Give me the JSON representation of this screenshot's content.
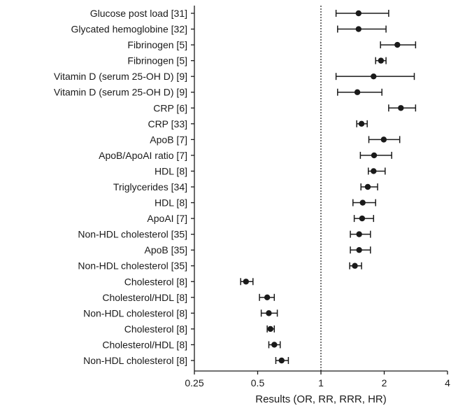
{
  "chart_data": {
    "type": "forest",
    "xscale": "log2",
    "xlim": [
      0.25,
      4
    ],
    "xticks": [
      0.25,
      0.5,
      1,
      2,
      4
    ],
    "xtick_labels": [
      "0.25",
      "0.5",
      "1",
      "2",
      "4"
    ],
    "xlabel": "Results (OR, RR, RRR, HR)",
    "reference_line": 1,
    "rows": [
      {
        "label": "Glucose post load [31]",
        "estimate": 1.51,
        "ci": [
          1.18,
          2.1
        ]
      },
      {
        "label": "Glycated hemoglobine [32]",
        "estimate": 1.51,
        "ci": [
          1.2,
          2.04
        ]
      },
      {
        "label": "Fibrinogen [5]",
        "estimate": 2.31,
        "ci": [
          1.92,
          2.82
        ]
      },
      {
        "label": "Fibrinogen [5]",
        "estimate": 1.93,
        "ci": [
          1.82,
          2.04
        ]
      },
      {
        "label": "Vitamin D (serum 25-OH D) [9]",
        "estimate": 1.78,
        "ci": [
          1.18,
          2.78
        ]
      },
      {
        "label": "Vitamin D (serum 25-OH D) [9]",
        "estimate": 1.49,
        "ci": [
          1.2,
          1.95
        ]
      },
      {
        "label": "CRP [6]",
        "estimate": 2.4,
        "ci": [
          2.1,
          2.82
        ]
      },
      {
        "label": "CRP [33]",
        "estimate": 1.56,
        "ci": [
          1.48,
          1.66
        ]
      },
      {
        "label": "ApoB [7]",
        "estimate": 1.99,
        "ci": [
          1.69,
          2.37
        ]
      },
      {
        "label": "ApoB/ApoAI ratio [7]",
        "estimate": 1.79,
        "ci": [
          1.54,
          2.17
        ]
      },
      {
        "label": "HDL [8]",
        "estimate": 1.78,
        "ci": [
          1.68,
          2.02
        ]
      },
      {
        "label": "Triglycerides [34]",
        "estimate": 1.67,
        "ci": [
          1.55,
          1.86
        ]
      },
      {
        "label": "HDL [8]",
        "estimate": 1.58,
        "ci": [
          1.42,
          1.82
        ]
      },
      {
        "label": "ApoAI [7]",
        "estimate": 1.57,
        "ci": [
          1.44,
          1.78
        ]
      },
      {
        "label": "Non-HDL cholesterol [35]",
        "estimate": 1.52,
        "ci": [
          1.38,
          1.72
        ]
      },
      {
        "label": "ApoB [35]",
        "estimate": 1.52,
        "ci": [
          1.38,
          1.72
        ]
      },
      {
        "label": "Non-HDL cholesterol [35]",
        "estimate": 1.45,
        "ci": [
          1.37,
          1.56
        ]
      },
      {
        "label": "Cholesterol [8]",
        "estimate": 0.44,
        "ci": [
          0.415,
          0.475
        ]
      },
      {
        "label": "Cholesterol/HDL [8]",
        "estimate": 0.555,
        "ci": [
          0.51,
          0.6
        ]
      },
      {
        "label": "Non-HDL cholesterol [8]",
        "estimate": 0.565,
        "ci": [
          0.52,
          0.62
        ]
      },
      {
        "label": "Cholesterol [8]",
        "estimate": 0.575,
        "ci": [
          0.555,
          0.6
        ]
      },
      {
        "label": "Cholesterol/HDL [8]",
        "estimate": 0.6,
        "ci": [
          0.565,
          0.64
        ]
      },
      {
        "label": "Non-HDL cholesterol [8]",
        "estimate": 0.65,
        "ci": [
          0.61,
          0.7
        ]
      }
    ]
  }
}
